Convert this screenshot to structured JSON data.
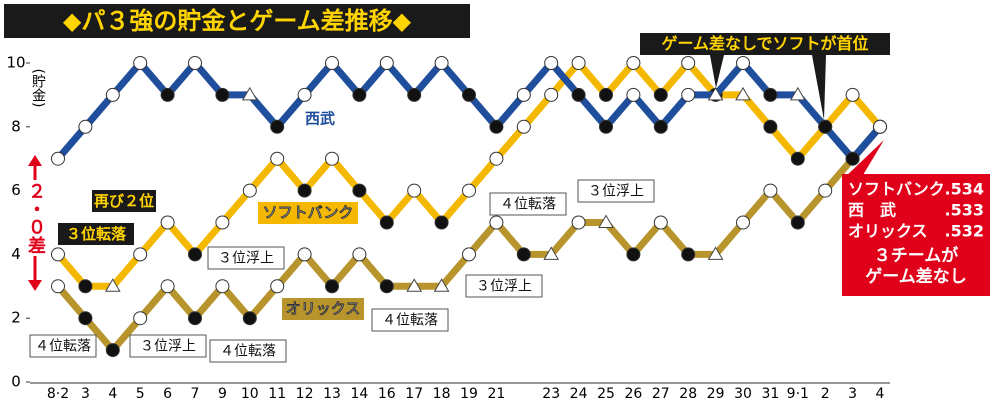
{
  "chart_data": {
    "type": "line",
    "title": "◆パ３強の貯金とゲーム差推移◆",
    "y_label": "(貯金)",
    "categories": [
      "8·2",
      "3",
      "4",
      "5",
      "6",
      "7",
      "9",
      "10",
      "11",
      "12",
      "13",
      "14",
      "16",
      "17",
      "18",
      "19",
      "21",
      null,
      "23",
      "24",
      "25",
      "26",
      "27",
      "28",
      "29",
      "30",
      "31",
      "9·1",
      "2",
      "3",
      "4"
    ],
    "ylim": [
      0,
      10.5
    ],
    "yticks": [
      0,
      2,
      4,
      6,
      8,
      10
    ],
    "grid": false,
    "series": [
      {
        "name": "オリックス",
        "color": "#b8942c",
        "values": [
          3,
          2,
          1,
          2,
          3,
          2,
          3,
          2,
          3,
          4,
          3,
          4,
          3,
          3,
          3,
          4,
          5,
          4,
          4,
          5,
          5,
          4,
          5,
          4,
          4,
          5,
          6,
          5,
          6,
          7,
          8
        ]
      },
      {
        "name": "ソフトバンク",
        "color": "#f5b800",
        "values": [
          4,
          3,
          3,
          4,
          5,
          4,
          5,
          6,
          7,
          6,
          7,
          6,
          5,
          6,
          5,
          6,
          7,
          8,
          9,
          10,
          9,
          10,
          9,
          10,
          9,
          9,
          8,
          7,
          8,
          9,
          8
        ]
      },
      {
        "name": "西武",
        "color": "#1f4e9c",
        "values": [
          7,
          8,
          9,
          10,
          9,
          10,
          9,
          9,
          8,
          9,
          10,
          9,
          10,
          9,
          10,
          9,
          8,
          9,
          10,
          9,
          8,
          9,
          8,
          9,
          9,
          10,
          9,
          9,
          8,
          7,
          8
        ]
      }
    ],
    "annotations": [
      {
        "text": "ゲーム差なしでソフトが首位"
      },
      {
        "text": "再び２位"
      },
      {
        "text": "３位転落"
      },
      {
        "text": "４位転落"
      },
      {
        "text": "３位浮上"
      },
      {
        "text": "４位転落"
      },
      {
        "text": "３位浮上"
      },
      {
        "text": "４位転落"
      },
      {
        "text": "３位浮上"
      },
      {
        "text": "４位転落"
      },
      {
        "text": "３位浮上"
      }
    ],
    "gap_label": "２・０差",
    "standings": [
      {
        "team": "ソフトバンク",
        "pct": ".534"
      },
      {
        "team": "西　武",
        "pct": ".533"
      },
      {
        "team": "オリックス",
        "pct": ".532"
      }
    ],
    "standings_note": [
      "３チームが",
      "ゲーム差なし"
    ]
  }
}
